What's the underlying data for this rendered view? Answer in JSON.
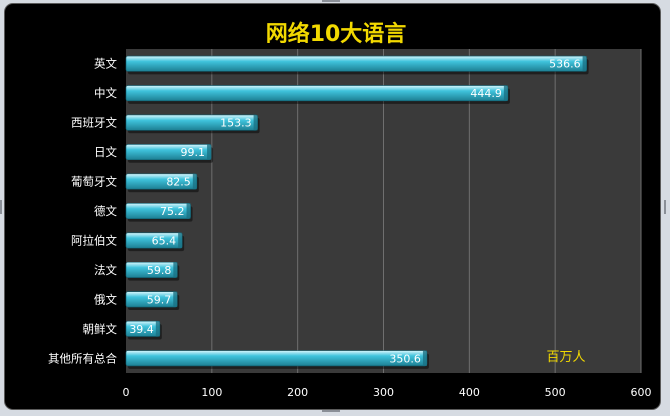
{
  "colors": {
    "background": "#000000",
    "plot_area": "#3a3a3a",
    "bar": "#3fc3dc",
    "title": "#f2d900",
    "unit_label": "#f2d900",
    "label_text": "#ffffff",
    "gridline": "#6f6f6f"
  },
  "chart_data": {
    "type": "bar",
    "orientation": "horizontal",
    "title": "网络10大语言",
    "unit_label": "百万人",
    "categories": [
      "英文",
      "中文",
      "西班牙文",
      "日文",
      "葡萄牙文",
      "德文",
      "阿拉伯文",
      "法文",
      "俄文",
      "朝鲜文",
      "其他所有总合"
    ],
    "values": [
      536.6,
      444.9,
      153.3,
      99.1,
      82.5,
      75.2,
      65.4,
      59.8,
      59.7,
      39.4,
      350.6
    ],
    "data_labels": [
      "536.6",
      "444.9",
      "153.3",
      "99.1",
      "82.5",
      "75.2",
      "65.4",
      "59.8",
      "59.7",
      "39.4",
      "350.6"
    ],
    "xlim": [
      0,
      600
    ],
    "x_ticks": [
      "0",
      "100",
      "200",
      "300",
      "400",
      "500",
      "600"
    ],
    "grid": true,
    "legend": "none"
  }
}
